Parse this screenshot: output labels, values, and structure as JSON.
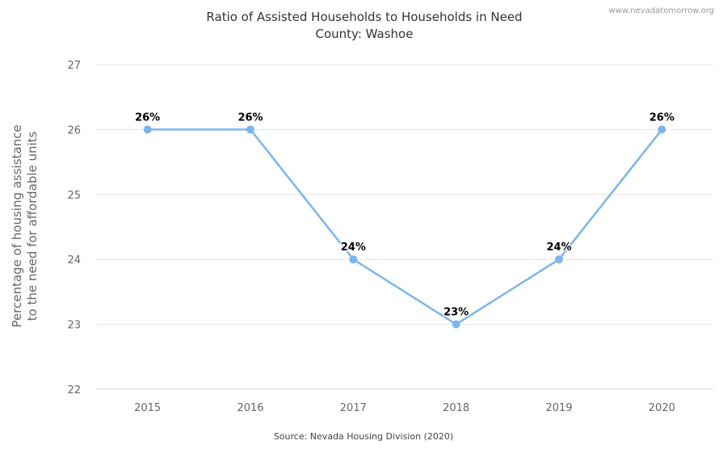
{
  "credit": "www.nevadatomorrow.org",
  "source": "Source: Nevada Housing Division (2020)",
  "chart_data": {
    "type": "line",
    "title": "Ratio of Assisted Households to Households in Need",
    "subtitle": "County: Washoe",
    "ylabel_lines": [
      "Percentage of housing assistance",
      "to the need for affordable units"
    ],
    "categories": [
      "2015",
      "2016",
      "2017",
      "2018",
      "2019",
      "2020"
    ],
    "values": [
      26,
      26,
      24,
      23,
      24,
      26
    ],
    "data_labels": [
      "26%",
      "26%",
      "24%",
      "23%",
      "24%",
      "26%"
    ],
    "ylim": [
      22,
      27
    ],
    "yticks": [
      "22",
      "23",
      "24",
      "25",
      "26",
      "27"
    ],
    "grid": true,
    "legend": "none",
    "line_color": "#7cb5ec"
  }
}
